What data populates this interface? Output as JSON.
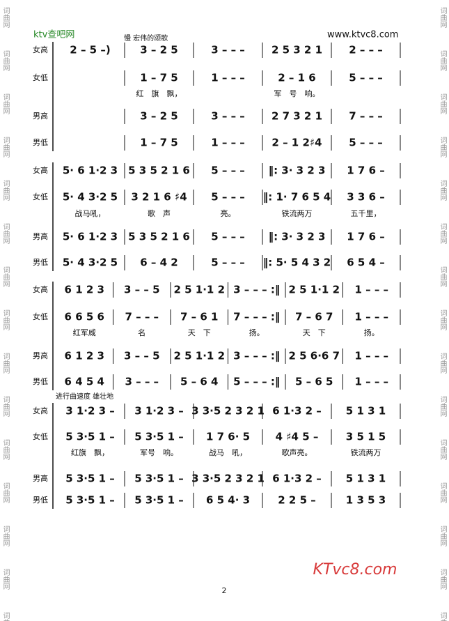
{
  "header": {
    "site_left": "ktv查吧网",
    "site_right": "www.ktvc8.com",
    "tempo": "慢 宏伟的颂歌"
  },
  "side_mark": "词曲网",
  "systems": [
    {
      "note": null,
      "staves": [
        {
          "label": "女高",
          "measures": [
            "2 – 5 –)",
            "3 – 2 5",
            "3 – – –",
            "2 5 3 2 1",
            "2 – – –"
          ]
        },
        {
          "label": "女低",
          "measures": [
            null,
            "1 – 7 5",
            "1 – – –",
            "2 – 1 6",
            "5 – – –"
          ]
        },
        {
          "label": "男高",
          "measures": [
            null,
            "3 – 2 5",
            "3 – – –",
            "2 7 3 2 1",
            "7 – – –"
          ]
        },
        {
          "label": "男低",
          "measures": [
            null,
            "1 – 7 5",
            "1 – – –",
            "2 – 1 2♯4",
            "5 – – –"
          ]
        }
      ],
      "lyrics": [
        null,
        "红　旗　飘，",
        null,
        "军　号　响。",
        null
      ]
    },
    {
      "note": null,
      "staves": [
        {
          "label": "女高",
          "measures": [
            "5· 6 1·2 3",
            "5 3 5 2 1 6",
            "5 – – –",
            "‖: 3· 3 2 3",
            "1 7 6 –"
          ]
        },
        {
          "label": "女低",
          "measures": [
            "5· 4 3·2 5",
            "3 2 1 6 ♯4",
            "5 – – –",
            "‖: 1· 7 6 5 4",
            "3 3 6 –"
          ]
        },
        {
          "label": "男高",
          "measures": [
            "5· 6 1·2 3",
            "5 3 5 2 1 6",
            "5 – – –",
            "‖: 3· 3 2 3",
            "1 7 6 –"
          ]
        },
        {
          "label": "男低",
          "measures": [
            "5· 4 3·2 5",
            "6 – 4 2",
            "5 – – –",
            "‖: 5· 5 4 3 2",
            "6 5 4 –"
          ]
        }
      ],
      "lyrics": [
        "战马吼，",
        "歌　声",
        "亮。",
        "铁流两万",
        "五千里，"
      ]
    },
    {
      "note": null,
      "staves": [
        {
          "label": "女高",
          "measures": [
            "6 1 2 3",
            "3 – – 5",
            "2 5 1·1 2",
            "3 – – – :‖",
            "2 5 1·1 2",
            "1 – – –"
          ]
        },
        {
          "label": "女低",
          "measures": [
            "6 6 5 6",
            "7 – – –",
            "7 – 6 1",
            "7 – – – :‖",
            "7 – 6 7",
            "1 – – –"
          ]
        },
        {
          "label": "男高",
          "measures": [
            "6 1 2 3",
            "3 – – 5",
            "2 5 1·1 2",
            "3 – – – :‖",
            "2 5 6·6 7",
            "1 – – –"
          ]
        },
        {
          "label": "男低",
          "measures": [
            "6 4 5 4",
            "3 – – –",
            "5 – 6 4",
            "5 – – – :‖",
            "5 – 6 5",
            "1 – – –"
          ]
        }
      ],
      "lyrics": [
        "红军威",
        "名",
        "天　下",
        "扬。",
        "天　下",
        "扬。"
      ]
    },
    {
      "note": "进行曲速度  雄壮地",
      "staves": [
        {
          "label": "女高",
          "measures": [
            "3 1·2 3 –",
            "3 1·2 3 –",
            "3 3·5 2 3 2 1",
            "6 1·3 2 –",
            "5 1 3 1"
          ]
        },
        {
          "label": "女低",
          "measures": [
            "5 3·5 1 –",
            "5 3·5 1 –",
            "1 7 6· 5",
            "4 ♯4 5 –",
            "3 5 1 5"
          ]
        },
        {
          "label": "男高",
          "measures": [
            "5 3·5 1 –",
            "5 3·5 1 –",
            "3 3·5 2 3 2 1",
            "6 1·3 2 –",
            "5 1 3 1"
          ]
        },
        {
          "label": "男低",
          "measures": [
            "5 3·5 1 –",
            "5 3·5 1 –",
            "6 5 4· 3",
            "2 2 5 –",
            "1 3 5 3"
          ]
        }
      ],
      "lyrics": [
        "红旗　飘，",
        "军号　响。",
        "战马　吼，",
        "歌声亮。",
        "铁流两万"
      ]
    }
  ],
  "footer": {
    "page": "2",
    "logo": "KTvc8.com"
  }
}
